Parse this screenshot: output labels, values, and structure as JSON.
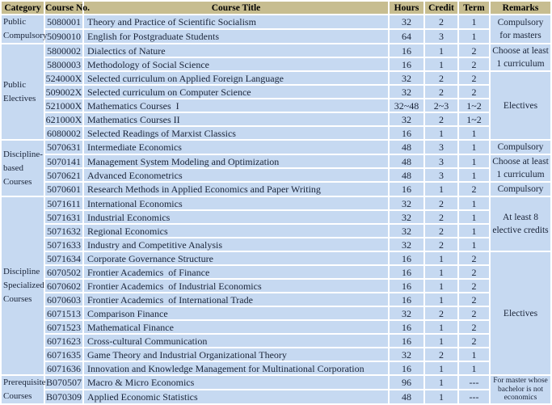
{
  "table": {
    "colors": {
      "header_bg": "#C7BD90",
      "cell_bg": "#C6D9F1",
      "grid": "#FFFFFF",
      "text": "#1A2438",
      "header_text": "#000000"
    },
    "headers": {
      "category": "Category",
      "course_no": "Course No.",
      "course_title": "Course Title",
      "hours": "Hours",
      "credit": "Credit",
      "term": "Term",
      "remarks": "Remarks"
    },
    "category_groups": [
      {
        "label": "Public Compulsory",
        "rows": 2
      },
      {
        "label": "Public Electives",
        "rows": 7
      },
      {
        "label": "Discipline-based Courses",
        "rows": 4
      },
      {
        "label": "Discipline Specialized Courses",
        "rows": 13
      },
      {
        "label": "Prerequisite Courses",
        "rows": 2
      }
    ],
    "remark_groups": [
      {
        "text": "Compulsory for masters",
        "rows": 2
      },
      {
        "text": "Choose at least 1 curriculum",
        "rows": 2
      },
      {
        "text": "Electives",
        "rows": 5
      },
      {
        "text": "Compulsory",
        "rows": 1
      },
      {
        "text": "Choose at least 1 curriculum",
        "rows": 2
      },
      {
        "text": "Compulsory",
        "rows": 1
      },
      {
        "text": "At least 8 elective credits",
        "rows": 4
      },
      {
        "text": "Electives",
        "rows": 9
      },
      {
        "text": "For master whose bachelor is not economics",
        "rows": 2
      }
    ],
    "rows": [
      {
        "no": "5080001",
        "title": "Theory and Practice of Scientific Socialism",
        "hours": "32",
        "credit": "2",
        "term": "1"
      },
      {
        "no": "5090010",
        "title": "English for Postgraduate Students",
        "hours": "64",
        "credit": "3",
        "term": "1"
      },
      {
        "no": "5800002",
        "title": "Dialectics of Nature",
        "hours": "16",
        "credit": "1",
        "term": "2"
      },
      {
        "no": "5800003",
        "title": "Methodology of Social Science",
        "hours": "16",
        "credit": "1",
        "term": "2"
      },
      {
        "no": "524000X",
        "title": "Selected curriculum on Applied Foreign Language",
        "hours": "32",
        "credit": "2",
        "term": "2"
      },
      {
        "no": "509002X",
        "title": "Selected curriculum on Computer Science",
        "hours": "32",
        "credit": "2",
        "term": "2"
      },
      {
        "no": "521000X",
        "title": "Mathematics Courses  I",
        "hours": "32~48",
        "credit": "2~3",
        "term": "1~2"
      },
      {
        "no": "621000X",
        "title": "Mathematics Courses II",
        "hours": "32",
        "credit": "2",
        "term": "1~2"
      },
      {
        "no": "6080002",
        "title": "Selected Readings of Marxist Classics",
        "hours": "16",
        "credit": "1",
        "term": "1"
      },
      {
        "no": "5070631",
        "title": "Intermediate Economics",
        "hours": "48",
        "credit": "3",
        "term": "1"
      },
      {
        "no": "5070141",
        "title": "Management System Modeling and Optimization",
        "hours": "48",
        "credit": "3",
        "term": "1"
      },
      {
        "no": "5070621",
        "title": "Advanced Econometrics",
        "hours": "48",
        "credit": "3",
        "term": "1"
      },
      {
        "no": "5070601",
        "title": "Research Methods in Applied Economics and Paper Writing",
        "hours": "16",
        "credit": "1",
        "term": "2"
      },
      {
        "no": "5071611",
        "title": "International Economics",
        "hours": "32",
        "credit": "2",
        "term": "1"
      },
      {
        "no": "5071631",
        "title": "Industrial Economics",
        "hours": "32",
        "credit": "2",
        "term": "1"
      },
      {
        "no": "5071632",
        "title": "Regional Economics",
        "hours": "32",
        "credit": "2",
        "term": "1"
      },
      {
        "no": "5071633",
        "title": "Industry and Competitive Analysis",
        "hours": "32",
        "credit": "2",
        "term": "1"
      },
      {
        "no": "5071634",
        "title": "Corporate Governance Structure",
        "hours": "16",
        "credit": "1",
        "term": "2"
      },
      {
        "no": "6070502",
        "title": "Frontier Academics  of Finance",
        "hours": "16",
        "credit": "1",
        "term": "2"
      },
      {
        "no": "6070602",
        "title": "Frontier Academics  of Industrial Economics",
        "hours": "16",
        "credit": "1",
        "term": "2"
      },
      {
        "no": "6070603",
        "title": "Frontier Academics  of International Trade",
        "hours": "16",
        "credit": "1",
        "term": "2"
      },
      {
        "no": "6071513",
        "title": "Comparison Finance",
        "hours": "32",
        "credit": "2",
        "term": "2"
      },
      {
        "no": "6071523",
        "title": "Mathematical Finance",
        "hours": "16",
        "credit": "1",
        "term": "2"
      },
      {
        "no": "6071623",
        "title": "Cross-cultural Communication",
        "hours": "16",
        "credit": "1",
        "term": "2"
      },
      {
        "no": "6071635",
        "title": "Game Theory and Industrial Organizational Theory",
        "hours": "32",
        "credit": "2",
        "term": "1"
      },
      {
        "no": "6071636",
        "title": "Innovation and Knowledge Management for Multinational Corporation",
        "hours": "16",
        "credit": "1",
        "term": "1"
      },
      {
        "no": "B070507",
        "title": "Macro & Micro Economics",
        "hours": "96",
        "credit": "1",
        "term": "---"
      },
      {
        "no": "B070309",
        "title": "Applied Economic Statistics",
        "hours": "48",
        "credit": "1",
        "term": "---"
      }
    ]
  }
}
